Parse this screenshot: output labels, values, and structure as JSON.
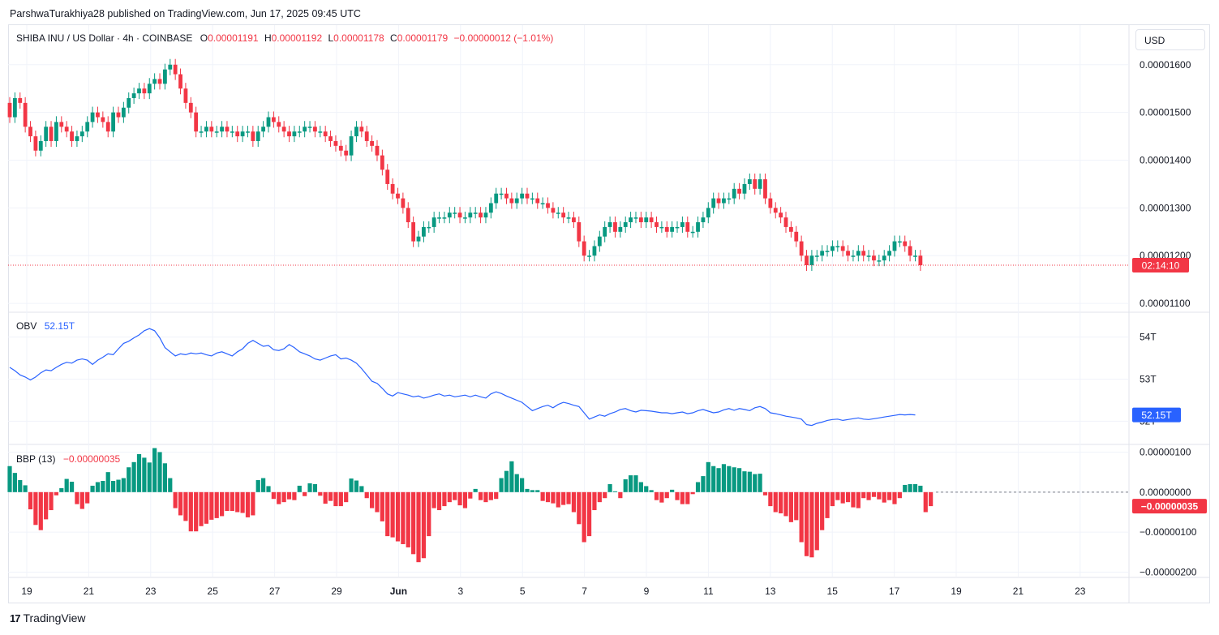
{
  "header": {
    "published": "ParshwaTurakhiya28 published on TradingView.com, Jun 17, 2025 09:45 UTC"
  },
  "legend": {
    "symbol": "SHIBA INU / US Dollar · 4h · COINBASE",
    "o_label": "O",
    "o_value": "0.00001191",
    "h_label": "H",
    "h_value": "0.00001192",
    "l_label": "L",
    "l_value": "0.00001178",
    "c_label": "C",
    "c_value": "0.00001179",
    "change": "−0.00000012 (−1.01%)"
  },
  "currency_button": "USD",
  "obv_legend": {
    "label": "OBV",
    "value": "52.15T"
  },
  "bbp_legend": {
    "label": "BBP (13)",
    "value": "−0.00000035"
  },
  "badges": {
    "price_timer": "02:14:10",
    "obv": "52.15T",
    "bbp": "−0.00000035"
  },
  "footer": {
    "brand": "TradingView",
    "logo": "tradingview-logo-icon"
  },
  "colors": {
    "up": "#089981",
    "down": "#f23645",
    "obv_line": "#2962ff",
    "grid": "#f0f3fa"
  },
  "chart_data": {
    "type": "candlestick",
    "timeframe": "4h",
    "x_tick_labels": [
      "19",
      "21",
      "23",
      "25",
      "27",
      "29",
      "Jun",
      "3",
      "5",
      "7",
      "9",
      "11",
      "13",
      "15",
      "17",
      "19",
      "21",
      "23"
    ],
    "price_axis": {
      "ticks": [
        "0.00001600",
        "0.00001500",
        "0.00001400",
        "0.00001300",
        "0.00001200",
        "0.00001100"
      ],
      "range": [
        1.09e-05,
        1.62e-05
      ]
    },
    "obv_axis": {
      "ticks": [
        "54T",
        "53T",
        "52T"
      ],
      "range": [
        51.7,
        54.3
      ]
    },
    "bbp_axis": {
      "ticks": [
        "0.00000100",
        "0.00000000",
        "−0.00000100",
        "−0.00000200"
      ],
      "range": [
        -2.05e-06,
        1.05e-06
      ]
    },
    "close": [
      14.9,
      15.3,
      15.2,
      14.7,
      14.5,
      14.2,
      14.4,
      14.7,
      14.4,
      14.8,
      14.7,
      14.6,
      14.4,
      14.5,
      14.6,
      14.8,
      15.0,
      14.9,
      14.8,
      14.6,
      15.0,
      14.9,
      15.1,
      15.3,
      15.4,
      15.5,
      15.4,
      15.6,
      15.7,
      15.6,
      15.9,
      16.0,
      15.8,
      15.5,
      15.2,
      15.0,
      14.6,
      14.6,
      14.7,
      14.6,
      14.6,
      14.7,
      14.6,
      14.6,
      14.5,
      14.6,
      14.6,
      14.4,
      14.6,
      14.7,
      14.9,
      14.8,
      14.7,
      14.6,
      14.5,
      14.6,
      14.6,
      14.7,
      14.7,
      14.6,
      14.6,
      14.5,
      14.4,
      14.3,
      14.2,
      14.1,
      14.5,
      14.7,
      14.6,
      14.4,
      14.3,
      14.1,
      13.8,
      13.5,
      13.3,
      13.2,
      13.0,
      12.7,
      12.3,
      12.4,
      12.6,
      12.6,
      12.8,
      12.8,
      12.8,
      12.9,
      12.9,
      12.8,
      12.8,
      12.9,
      12.9,
      12.8,
      12.9,
      13.1,
      13.3,
      13.3,
      13.2,
      13.1,
      13.2,
      13.3,
      13.2,
      13.2,
      13.1,
      13.1,
      13.0,
      12.9,
      12.9,
      12.8,
      12.8,
      12.7,
      12.3,
      12.0,
      12.0,
      12.2,
      12.4,
      12.6,
      12.7,
      12.5,
      12.6,
      12.7,
      12.8,
      12.8,
      12.7,
      12.8,
      12.7,
      12.6,
      12.6,
      12.5,
      12.6,
      12.6,
      12.7,
      12.5,
      12.5,
      12.7,
      12.8,
      13.0,
      13.2,
      13.1,
      13.2,
      13.2,
      13.4,
      13.3,
      13.5,
      13.6,
      13.4,
      13.6,
      13.2,
      13.0,
      12.9,
      12.8,
      12.6,
      12.5,
      12.3,
      12.0,
      11.8,
      12.0,
      12.0,
      12.1,
      12.1,
      12.2,
      12.2,
      12.1,
      12.0,
      12.0,
      12.1,
      12.0,
      12.0,
      11.9,
      11.9,
      12.0,
      12.1,
      12.3,
      12.3,
      12.2,
      12.0,
      12.0,
      11.8
    ],
    "obv": [
      53.28,
      53.2,
      53.1,
      53.05,
      52.98,
      53.05,
      53.15,
      53.22,
      53.2,
      53.28,
      53.35,
      53.4,
      53.38,
      53.45,
      53.48,
      53.45,
      53.35,
      53.45,
      53.52,
      53.6,
      53.58,
      53.72,
      53.85,
      53.9,
      53.98,
      54.05,
      54.15,
      54.2,
      54.15,
      53.98,
      53.75,
      53.65,
      53.55,
      53.6,
      53.58,
      53.62,
      53.6,
      53.62,
      53.58,
      53.55,
      53.62,
      53.65,
      53.6,
      53.55,
      53.65,
      53.72,
      53.85,
      53.92,
      53.85,
      53.78,
      53.8,
      53.7,
      53.68,
      53.72,
      53.82,
      53.75,
      53.65,
      53.6,
      53.55,
      53.48,
      53.45,
      53.5,
      53.55,
      53.58,
      53.48,
      53.5,
      53.45,
      53.38,
      53.25,
      53.1,
      52.95,
      52.9,
      52.78,
      52.65,
      52.6,
      52.68,
      52.65,
      52.62,
      52.58,
      52.6,
      52.55,
      52.58,
      52.62,
      52.65,
      52.6,
      52.62,
      52.58,
      52.6,
      52.62,
      52.58,
      52.62,
      52.58,
      52.55,
      52.65,
      52.7,
      52.66,
      52.6,
      52.55,
      52.5,
      52.45,
      52.35,
      52.25,
      52.3,
      52.35,
      52.38,
      52.32,
      52.4,
      52.45,
      52.42,
      52.38,
      52.35,
      52.2,
      52.05,
      52.1,
      52.15,
      52.12,
      52.18,
      52.22,
      52.28,
      52.3,
      52.25,
      52.22,
      52.26,
      52.25,
      52.24,
      52.22,
      52.2,
      52.2,
      52.18,
      52.2,
      52.22,
      52.18,
      52.2,
      52.25,
      52.28,
      52.24,
      52.2,
      52.22,
      52.27,
      52.3,
      52.26,
      52.3,
      52.28,
      52.25,
      52.32,
      52.35,
      52.3,
      52.2,
      52.18,
      52.15,
      52.12,
      52.1,
      52.08,
      52.05,
      51.92,
      51.9,
      51.95,
      51.98,
      52.02,
      52.04,
      52.05,
      52.02,
      52.04,
      52.06,
      52.08,
      52.05,
      52.04,
      52.06,
      52.08,
      52.1,
      52.12,
      52.14,
      52.16,
      52.15,
      52.16,
      52.15
    ],
    "bbp": [
      0.65,
      0.48,
      0.3,
      0.17,
      -0.43,
      -0.82,
      -0.95,
      -0.68,
      -0.45,
      -0.08,
      0.1,
      0.33,
      0.26,
      -0.3,
      -0.42,
      -0.28,
      0.16,
      0.25,
      0.28,
      0.5,
      0.28,
      0.31,
      0.35,
      0.62,
      0.75,
      0.95,
      0.86,
      0.74,
      1.1,
      1.0,
      0.72,
      0.35,
      -0.4,
      -0.58,
      -0.72,
      -0.98,
      -0.98,
      -0.85,
      -0.79,
      -0.69,
      -0.65,
      -0.6,
      -0.47,
      -0.47,
      -0.5,
      -0.52,
      -0.63,
      -0.58,
      0.3,
      0.35,
      0.15,
      -0.17,
      -0.3,
      -0.25,
      -0.18,
      -0.2,
      0.16,
      -0.1,
      0.22,
      0.2,
      -0.09,
      -0.29,
      -0.22,
      -0.35,
      -0.35,
      -0.25,
      0.34,
      0.29,
      0.15,
      -0.15,
      -0.4,
      -0.5,
      -0.73,
      -1.1,
      -1.13,
      -1.23,
      -1.3,
      -1.38,
      -1.55,
      -1.75,
      -1.65,
      -1.1,
      -0.4,
      -0.45,
      -0.35,
      -0.25,
      -0.2,
      -0.33,
      -0.4,
      -0.16,
      0.08,
      -0.2,
      -0.25,
      -0.2,
      -0.17,
      0.35,
      0.53,
      0.77,
      0.45,
      0.35,
      0.08,
      0.05,
      0.05,
      -0.22,
      -0.25,
      -0.28,
      -0.38,
      -0.32,
      -0.3,
      -0.5,
      -0.8,
      -1.25,
      -1.1,
      -0.45,
      -0.25,
      -0.15,
      0.2,
      0.02,
      -0.15,
      0.32,
      0.42,
      0.42,
      0.25,
      0.15,
      0.05,
      -0.2,
      -0.26,
      -0.15,
      0.06,
      -0.2,
      -0.3,
      -0.3,
      -0.05,
      0.25,
      0.4,
      0.75,
      0.65,
      0.6,
      0.7,
      0.65,
      0.62,
      0.6,
      0.52,
      0.51,
      0.45,
      0.46,
      -0.08,
      -0.35,
      -0.5,
      -0.53,
      -0.6,
      -0.75,
      -0.7,
      -1.25,
      -1.6,
      -1.63,
      -1.45,
      -0.95,
      -0.65,
      -0.35,
      -0.2,
      -0.28,
      -0.25,
      -0.38,
      -0.4,
      -0.15,
      -0.2,
      -0.12,
      -0.18,
      -0.26,
      -0.2,
      -0.3,
      -0.15,
      0.18,
      0.2,
      0.2,
      0.16,
      -0.5,
      -0.35
    ]
  }
}
